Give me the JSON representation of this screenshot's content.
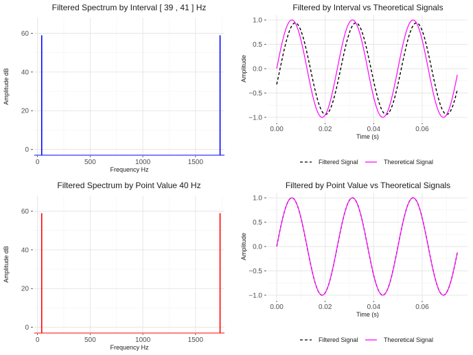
{
  "chart_data": [
    {
      "type": "line",
      "title": "Filtered Spectrum by Interval [ 39 , 41 ] Hz",
      "xlabel": "Frequency Hz",
      "ylabel": "Amplitude dB",
      "xlim": [
        -30,
        1775
      ],
      "ylim": [
        -3,
        68
      ],
      "xticks": [
        0,
        500,
        1000,
        1500
      ],
      "xtick_labels": [
        "0",
        "500",
        "1000",
        "1500"
      ],
      "yticks": [
        0,
        20,
        40,
        60
      ],
      "ytick_labels": [
        "0",
        "20",
        "40",
        "60"
      ],
      "grid": true,
      "baseline": -3,
      "series": [
        {
          "color": "#0000ff",
          "spikes": [
            {
              "x": 40,
              "y": 59
            },
            {
              "x": 1733,
              "y": 59
            }
          ]
        }
      ]
    },
    {
      "type": "line",
      "title": "Filtered by Interval vs Theoretical Signals",
      "xlabel": "Time (s)",
      "ylabel": "Amplitude",
      "xlim": [
        -0.0037,
        0.0787
      ],
      "ylim": [
        -1.1,
        1.1
      ],
      "xticks": [
        0.0,
        0.02,
        0.04,
        0.06
      ],
      "xtick_labels": [
        "0.00",
        "0.02",
        "0.04",
        "0.06"
      ],
      "yticks": [
        -1.0,
        -0.5,
        0.0,
        0.5,
        1.0
      ],
      "ytick_labels": [
        "−1.0",
        "−0.5",
        "0.0",
        "0.5",
        "1.0"
      ],
      "grid": true,
      "legend_position": "bottom",
      "series": [
        {
          "name": "Filtered Signal",
          "color": "#000000",
          "dash": true,
          "frequency_hz": 40,
          "amplitude": 0.94,
          "phase": -0.35,
          "x_start": 0.0,
          "x_end": 0.0745
        },
        {
          "name": "Theoretical Signal",
          "color": "#ff00ff",
          "dash": false,
          "frequency_hz": 40,
          "amplitude": 1.0,
          "phase": 0.0,
          "x_start": 0.0,
          "x_end": 0.0745
        }
      ]
    },
    {
      "type": "line",
      "title": "Filtered Spectrum by Point Value  40 Hz",
      "xlabel": "Frequency Hz",
      "ylabel": "Amplitude dB",
      "xlim": [
        -30,
        1775
      ],
      "ylim": [
        -3,
        68
      ],
      "xticks": [
        0,
        500,
        1000,
        1500
      ],
      "xtick_labels": [
        "0",
        "500",
        "1000",
        "1500"
      ],
      "yticks": [
        0,
        20,
        40,
        60
      ],
      "ytick_labels": [
        "0",
        "20",
        "40",
        "60"
      ],
      "grid": true,
      "baseline": -3,
      "series": [
        {
          "color": "#ff0000",
          "spikes": [
            {
              "x": 40,
              "y": 59
            },
            {
              "x": 1733,
              "y": 59
            }
          ]
        }
      ]
    },
    {
      "type": "line",
      "title": "Filtered by Point Value vs Theoretical Signals",
      "xlabel": "Time (s)",
      "ylabel": "Amplitude",
      "xlim": [
        -0.0037,
        0.0787
      ],
      "ylim": [
        -1.1,
        1.1
      ],
      "xticks": [
        0.0,
        0.02,
        0.04,
        0.06
      ],
      "xtick_labels": [
        "0.00",
        "0.02",
        "0.04",
        "0.06"
      ],
      "yticks": [
        -1.0,
        -0.5,
        0.0,
        0.5,
        1.0
      ],
      "ytick_labels": [
        "−1.0",
        "−0.5",
        "0.0",
        "0.5",
        "1.0"
      ],
      "grid": true,
      "legend_position": "bottom",
      "series": [
        {
          "name": "Filtered Signal",
          "color": "#000000",
          "dash": true,
          "frequency_hz": 40,
          "amplitude": 1.0,
          "phase": 0.0,
          "x_start": 0.0,
          "x_end": 0.0745
        },
        {
          "name": "Theoretical Signal",
          "color": "#ff00ff",
          "dash": false,
          "frequency_hz": 40,
          "amplitude": 1.0,
          "phase": 0.0,
          "x_start": 0.0,
          "x_end": 0.0745
        }
      ]
    }
  ]
}
